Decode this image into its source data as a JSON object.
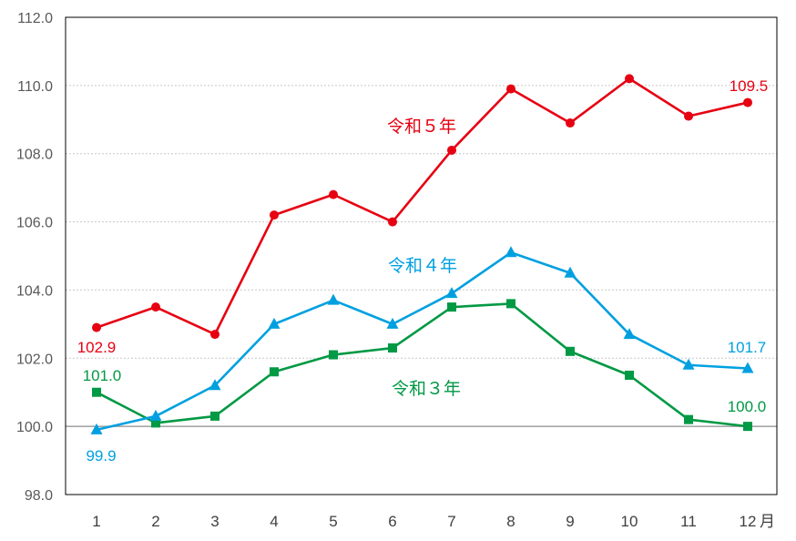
{
  "chart_data": {
    "type": "line",
    "categories": [
      "1",
      "2",
      "3",
      "4",
      "5",
      "6",
      "7",
      "8",
      "9",
      "10",
      "11",
      "12"
    ],
    "x_unit": "月",
    "ylim": [
      98.0,
      112.0
    ],
    "y_ticks": [
      "98.0",
      "100.0",
      "102.0",
      "104.0",
      "106.0",
      "108.0",
      "110.0",
      "112.0"
    ],
    "baseline": 100.0,
    "grid": "horizontal dotted",
    "series": [
      {
        "name": "令和５年",
        "color": "#e60012",
        "marker": "circle",
        "values": [
          102.9,
          103.5,
          102.7,
          106.2,
          106.8,
          106.0,
          108.1,
          109.9,
          108.9,
          110.2,
          109.1,
          109.5
        ],
        "first_label": "102.9",
        "last_label": "109.5"
      },
      {
        "name": "令和４年",
        "color": "#00a0e0",
        "marker": "triangle",
        "values": [
          99.9,
          100.3,
          101.2,
          103.0,
          103.7,
          103.0,
          103.9,
          105.1,
          104.5,
          102.7,
          101.8,
          101.7
        ],
        "first_label": "99.9",
        "last_label": "101.7"
      },
      {
        "name": "令和３年",
        "color": "#009944",
        "marker": "square",
        "values": [
          101.0,
          100.1,
          100.3,
          101.6,
          102.1,
          102.3,
          103.5,
          103.6,
          102.2,
          101.5,
          100.2,
          100.0
        ],
        "first_label": "101.0",
        "last_label": "100.0"
      }
    ]
  }
}
